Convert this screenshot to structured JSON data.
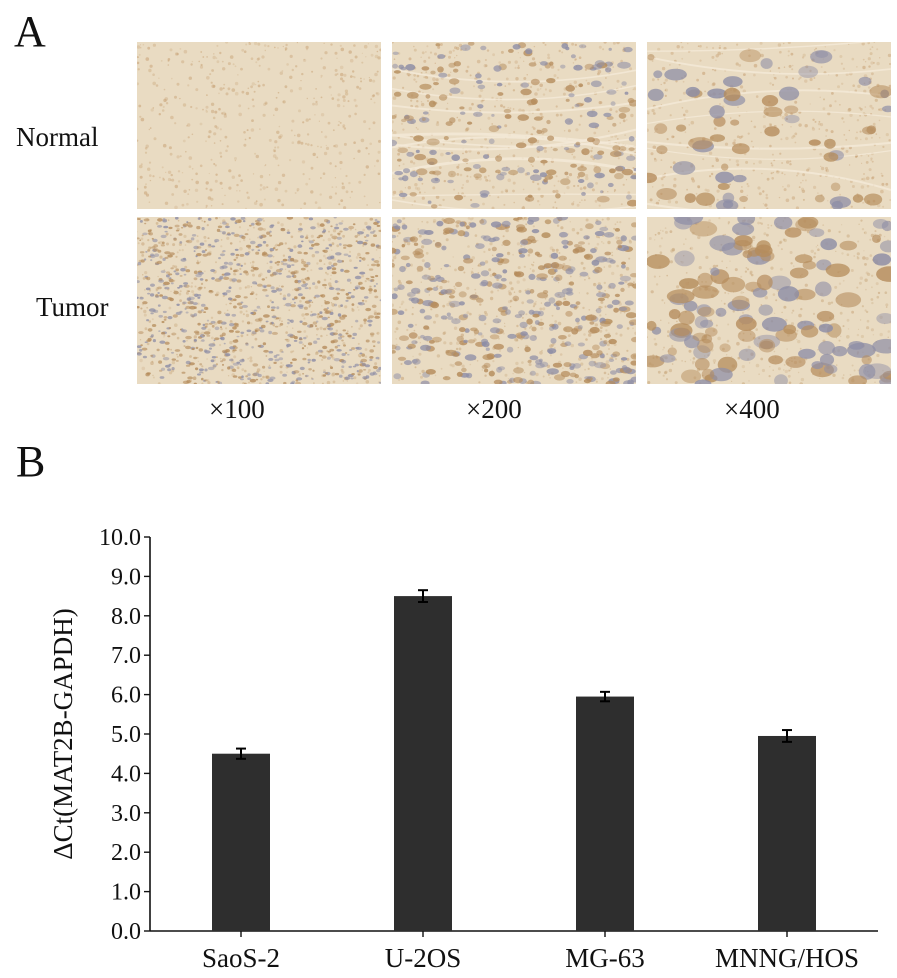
{
  "figure": {
    "panel_a_letter": "A",
    "panel_b_letter": "B",
    "row_labels": [
      "Normal",
      "Tumor"
    ],
    "magnifications": [
      "×100",
      "×200",
      "×400"
    ],
    "micrographs": {
      "rows": [
        "normal",
        "tumor"
      ],
      "columns": [
        "×100",
        "×200",
        "×400"
      ],
      "colors": {
        "background": "#e9dbc2",
        "normal_stain": "#c9a478",
        "tumor_stain": "#c8a77c",
        "nuclei": "#8e8ea6"
      }
    }
  },
  "chart_data": {
    "type": "bar",
    "title": "",
    "xlabel": "",
    "ylabel": "ΔCt(MAT2B-GAPDH)",
    "categories": [
      "SaoS-2",
      "U-2OS",
      "MG-63",
      "MNNG/HOS"
    ],
    "series": [
      {
        "values": [
          4.5,
          8.5,
          5.95,
          4.95
        ],
        "errors": [
          0.13,
          0.15,
          0.12,
          0.15
        ]
      }
    ],
    "ylim": [
      0.0,
      10.0
    ],
    "yticks": [
      "0.0",
      "1.0",
      "2.0",
      "3.0",
      "4.0",
      "5.0",
      "6.0",
      "7.0",
      "8.0",
      "9.0",
      "10.0"
    ],
    "grid": false,
    "legend": "none",
    "bar_color": "#2e2e2e",
    "axis_color": "#111111"
  }
}
